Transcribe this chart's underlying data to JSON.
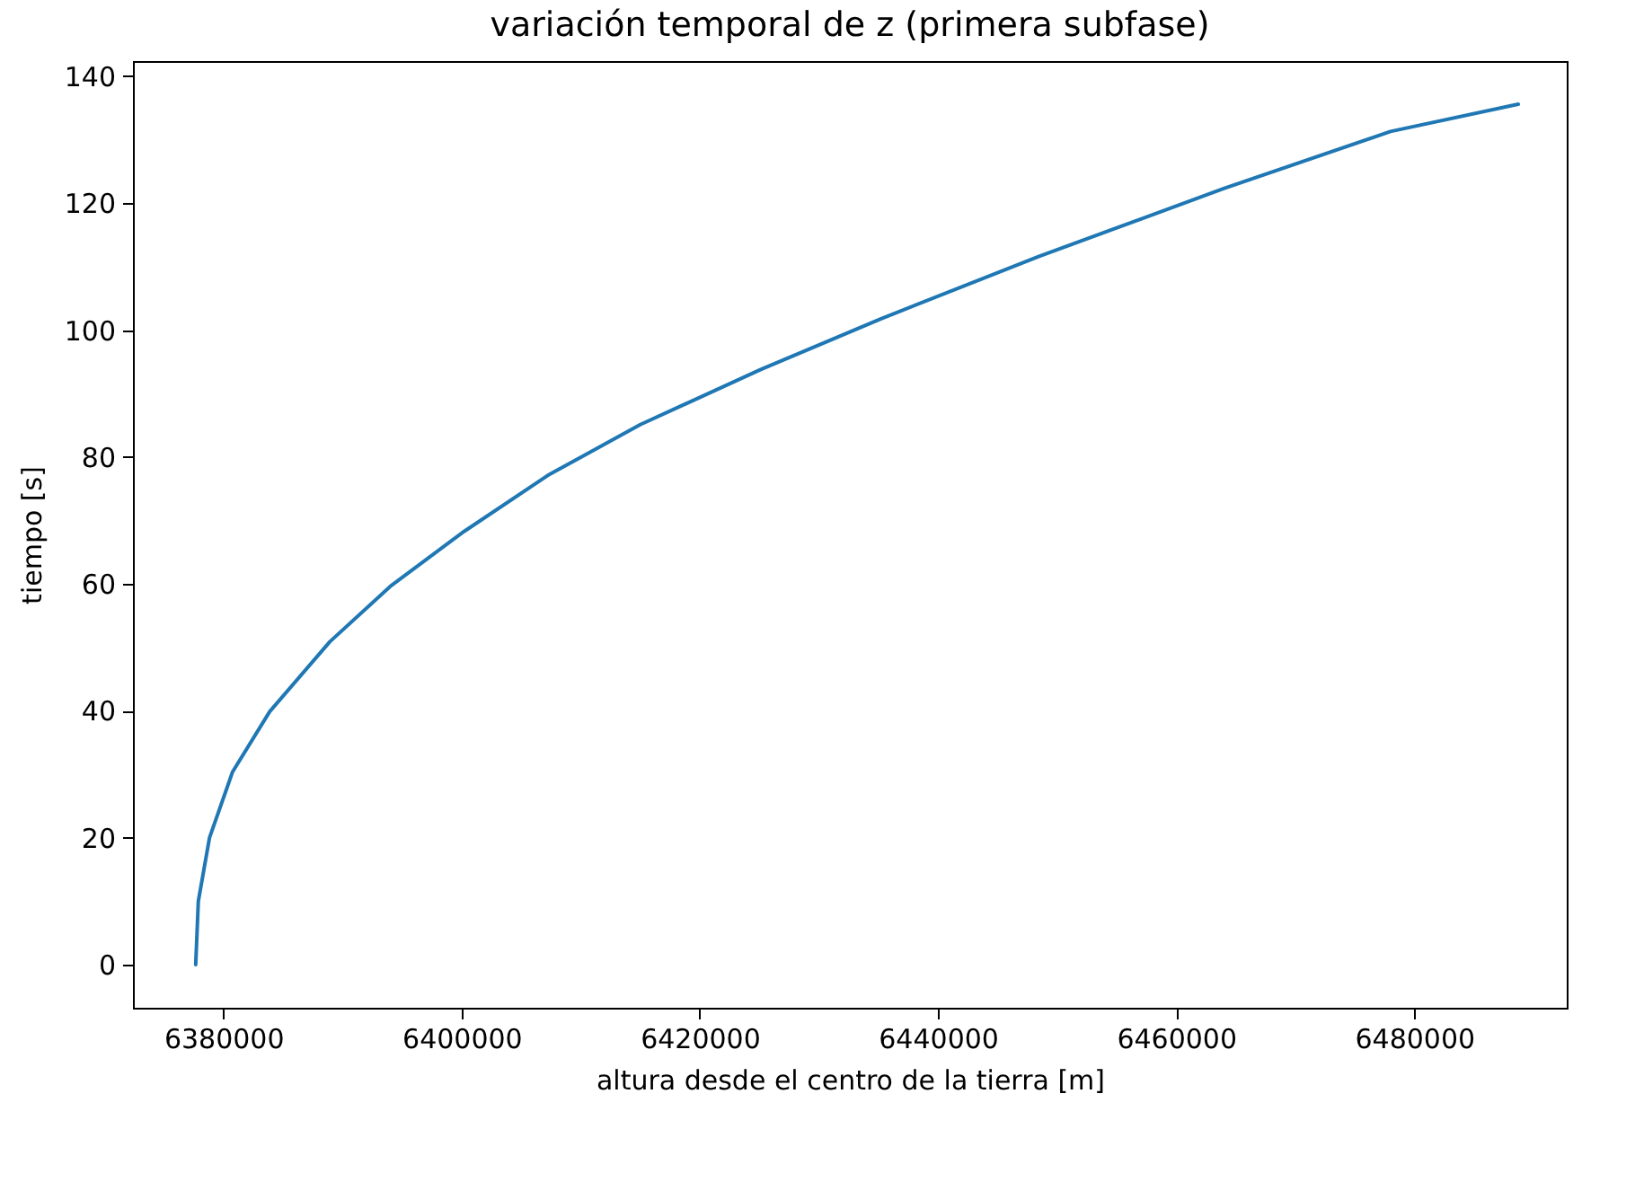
{
  "chart_data": {
    "type": "line",
    "title": "variación temporal de z (primera subfase)",
    "xlabel": "altura desde el centro de la tierra [m]",
    "ylabel": "tiempo [s]",
    "x": [
      6377670,
      6377890,
      6378830,
      6380770,
      6383890,
      6388940,
      6394000,
      6400230,
      6407230,
      6415000,
      6425120,
      6435230,
      6448450,
      6464000,
      6478000,
      6488730
    ],
    "series": [
      {
        "color": "#1f77b4",
        "values": [
          0,
          10,
          20,
          30.4,
          39.9,
          50.9,
          59.6,
          68.3,
          77.1,
          85.1,
          93.8,
          101.8,
          111.6,
          122.3,
          131.3,
          135.6
        ]
      }
    ],
    "xlim": [
      6372400,
      6492800
    ],
    "ylim": [
      -6.8,
      142.4
    ],
    "xticks": [
      6380000,
      6400000,
      6420000,
      6440000,
      6460000,
      6480000
    ],
    "yticks": [
      0,
      20,
      40,
      60,
      80,
      100,
      120,
      140
    ],
    "grid": false,
    "legend": false,
    "marker": "none",
    "line_style": "solid"
  }
}
